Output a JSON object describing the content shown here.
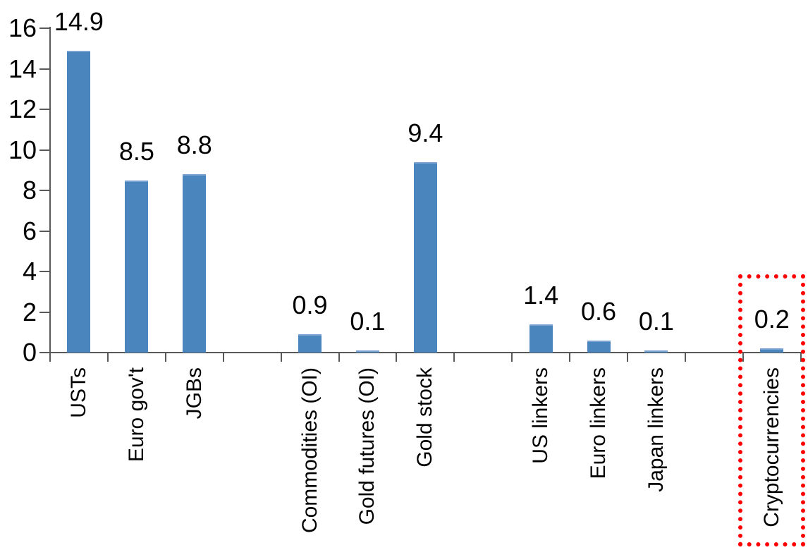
{
  "chart_data": {
    "type": "bar",
    "title": "",
    "xlabel": "",
    "ylabel": "",
    "categories": [
      "USTs",
      "Euro gov't",
      "JGBs",
      "Commodities (OI)",
      "Gold futures (OI)",
      "Gold stock",
      "US linkers",
      "Euro linkers",
      "Japan linkers",
      "Cryptocurrencies"
    ],
    "values": [
      14.9,
      8.5,
      8.8,
      0.9,
      0.1,
      9.4,
      1.4,
      0.6,
      0.1,
      0.2
    ],
    "data_labels": [
      "14.9",
      "8.5",
      "8.8",
      "0.9",
      "0.1",
      "9.4",
      "1.4",
      "0.6",
      "0.1",
      "0.2"
    ],
    "slots": [
      {
        "category": "USTs",
        "value": 14.9,
        "label": "14.9"
      },
      {
        "category": "Euro gov't",
        "value": 8.5,
        "label": "8.5"
      },
      {
        "category": "JGBs",
        "value": 8.8,
        "label": "8.8"
      },
      {
        "category": null,
        "value": null,
        "label": null
      },
      {
        "category": "Commodities (OI)",
        "value": 0.9,
        "label": "0.9"
      },
      {
        "category": "Gold futures (OI)",
        "value": 0.1,
        "label": "0.1"
      },
      {
        "category": "Gold stock",
        "value": 9.4,
        "label": "9.4"
      },
      {
        "category": null,
        "value": null,
        "label": null
      },
      {
        "category": "US linkers",
        "value": 1.4,
        "label": "1.4"
      },
      {
        "category": "Euro linkers",
        "value": 0.6,
        "label": "0.6"
      },
      {
        "category": "Japan linkers",
        "value": 0.1,
        "label": "0.1"
      },
      {
        "category": null,
        "value": null,
        "label": null
      },
      {
        "category": "Cryptocurrencies",
        "value": 0.2,
        "label": "0.2"
      }
    ],
    "ylim": [
      0,
      16
    ],
    "ytick_step": 2,
    "ytick_labels": [
      "0",
      "2",
      "4",
      "6",
      "8",
      "10",
      "12",
      "14",
      "16"
    ],
    "grid": false,
    "legend": false,
    "bar_color": "#4a85bd",
    "bar_top_edge_color": "#7aa3d1",
    "axis_color": "#595959",
    "text_color": "#000000",
    "highlight": {
      "slot_index": 12,
      "category": "Cryptocurrencies",
      "style": "dotted-box",
      "color": "#ff0000"
    }
  }
}
